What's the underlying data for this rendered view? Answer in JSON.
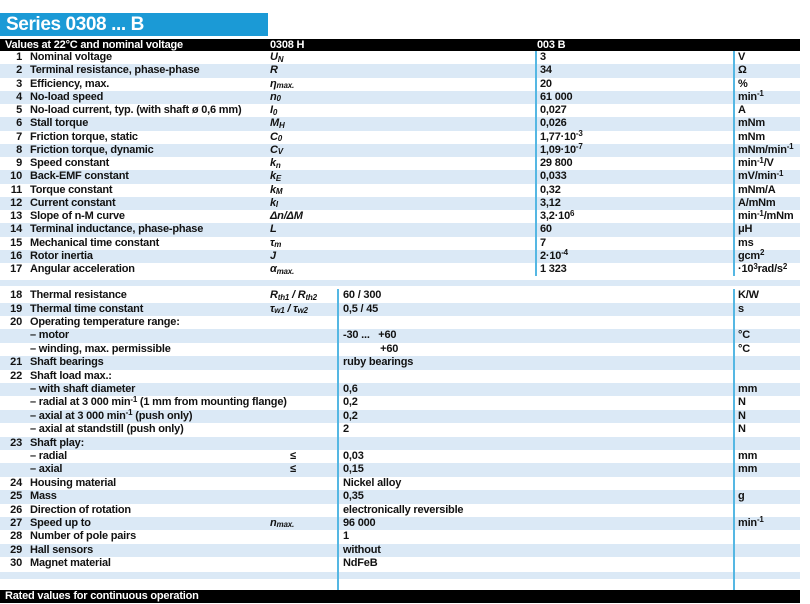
{
  "title": "Series 0308 ... B",
  "header": {
    "left": "Values at 22°C and nominal voltage",
    "col1": "0308 H",
    "col2": "003 B"
  },
  "footer": {
    "label": "Rated values for continuous operation"
  },
  "colors": {
    "accent": "#1b9ad6",
    "stripe": "#dbe9f6",
    "line": "#55b7e3",
    "bar": "#000000"
  },
  "rows_upper": [
    {
      "num": "1",
      "label": "Nominal voltage",
      "sym": "U_{N}",
      "val": "3",
      "unit": "V"
    },
    {
      "num": "2",
      "label": "Terminal resistance, phase-phase",
      "sym": "R",
      "val": "34",
      "unit": "Ω"
    },
    {
      "num": "3",
      "label": "Efficiency, max.",
      "sym": "η_{max.}",
      "val": "20",
      "unit": "%"
    },
    {
      "num": "4",
      "label": "No-load speed",
      "sym": "n_{0}",
      "val": "61 000",
      "unit": "min^{-1}"
    },
    {
      "num": "5",
      "label": "No-load current, typ. (with shaft ø 0,6 mm)",
      "sym": "I_{0}",
      "val": "0,027",
      "unit": "A"
    },
    {
      "num": "6",
      "label": "Stall torque",
      "sym": "M_{H}",
      "val": "0,026",
      "unit": "mNm"
    },
    {
      "num": "7",
      "label": "Friction torque, static",
      "sym": "C_{0}",
      "val": "1,77·10^{-3}",
      "unit": "mNm"
    },
    {
      "num": "8",
      "label": "Friction torque, dynamic",
      "sym": "C_{V}",
      "val": "1,09·10^{-7}",
      "unit": "mNm/min^{-1}"
    },
    {
      "num": "9",
      "label": "Speed constant",
      "sym": "k_{n}",
      "val": "29 800",
      "unit": "min^{-1}/V"
    },
    {
      "num": "10",
      "label": "Back-EMF constant",
      "sym": "k_{E}",
      "val": "0,033",
      "unit": "mV/min^{-1}"
    },
    {
      "num": "11",
      "label": "Torque constant",
      "sym": "k_{M}",
      "val": "0,32",
      "unit": "mNm/A"
    },
    {
      "num": "12",
      "label": "Current constant",
      "sym": "k_{I}",
      "val": "3,12",
      "unit": "A/mNm"
    },
    {
      "num": "13",
      "label": "Slope of n-M curve",
      "sym": "Δn/ΔM",
      "val": "3,2·10^{6}",
      "unit": "min^{-1}/mNm"
    },
    {
      "num": "14",
      "label": "Terminal inductance, phase-phase",
      "sym": "L",
      "val": "60",
      "unit": "μH"
    },
    {
      "num": "15",
      "label": "Mechanical time constant",
      "sym": "τ_{m}",
      "val": "7",
      "unit": "ms"
    },
    {
      "num": "16",
      "label": "Rotor inertia",
      "sym": "J",
      "val": "2·10^{-4}",
      "unit": "gcm^{2}"
    },
    {
      "num": "17",
      "label": "Angular acceleration",
      "sym": "α_{max.}",
      "val": "1 323",
      "unit": "·10^{3}rad/s^{2}"
    }
  ],
  "rows_lower": [
    {
      "num": "18",
      "label": "Thermal resistance",
      "sym": "R_{th1} / R_{th2}",
      "val": "60 / 300",
      "unit": "K/W"
    },
    {
      "num": "19",
      "label": "Thermal time constant",
      "sym": "τ_{w1} / τ_{w2}",
      "val": "0,5 / 45",
      "unit": "s"
    },
    {
      "num": "20",
      "label": "Operating temperature range:"
    },
    {
      "num": "",
      "label": "– motor",
      "val": "-30 ...   +60",
      "unit": "°C"
    },
    {
      "num": "",
      "label": "– winding, max. permissible",
      "val": "             +60",
      "unit": "°C"
    },
    {
      "num": "21",
      "label": "Shaft bearings",
      "val": "ruby bearings"
    },
    {
      "num": "22",
      "label": "Shaft load max.:"
    },
    {
      "num": "",
      "label": "– with shaft diameter",
      "val": "0,6",
      "unit": "mm"
    },
    {
      "num": "",
      "label": "– radial at 3 000 min^{-1} (1 mm from mounting flange)",
      "val": "0,2",
      "unit": "N"
    },
    {
      "num": "",
      "label": "– axial at 3 000 min^{-1} (push only)",
      "val": "0,2",
      "unit": "N"
    },
    {
      "num": "",
      "label": "– axial at standstill (push only)",
      "val": "2",
      "unit": "N"
    },
    {
      "num": "23",
      "label": "Shaft play:"
    },
    {
      "num": "",
      "label": "– radial",
      "le": "≤",
      "val": "0,03",
      "unit": "mm"
    },
    {
      "num": "",
      "label": "– axial",
      "le": "≤",
      "val": "0,15",
      "unit": "mm"
    },
    {
      "num": "24",
      "label": "Housing material",
      "val": "Nickel alloy"
    },
    {
      "num": "25",
      "label": "Mass",
      "val": "0,35",
      "unit": "g"
    },
    {
      "num": "26",
      "label": "Direction of rotation",
      "val": "electronically reversible"
    },
    {
      "num": "27",
      "label": "Speed up to",
      "sym": "n_{max.}",
      "val": "96 000",
      "unit": "min^{-1}"
    },
    {
      "num": "28",
      "label": "Number of pole pairs",
      "val": "1"
    },
    {
      "num": "29",
      "label": "Hall sensors",
      "val": "without"
    },
    {
      "num": "30",
      "label": "Magnet material",
      "val": "NdFeB"
    }
  ]
}
